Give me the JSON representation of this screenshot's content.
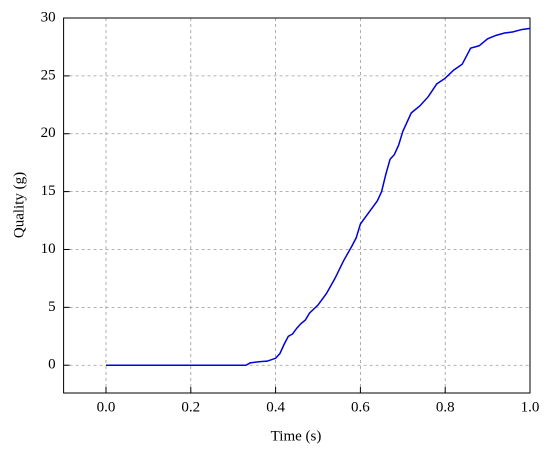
{
  "chart_data": {
    "type": "line",
    "x_label": "Time (s)",
    "y_label": "Quality (g)",
    "x": [
      0.0,
      0.1,
      0.2,
      0.3,
      0.33,
      0.34,
      0.36,
      0.38,
      0.4,
      0.41,
      0.42,
      0.43,
      0.44,
      0.45,
      0.46,
      0.47,
      0.48,
      0.5,
      0.52,
      0.54,
      0.56,
      0.58,
      0.59,
      0.6,
      0.62,
      0.64,
      0.65,
      0.66,
      0.67,
      0.68,
      0.69,
      0.7,
      0.72,
      0.74,
      0.76,
      0.78,
      0.8,
      0.82,
      0.84,
      0.86,
      0.88,
      0.9,
      0.92,
      0.94,
      0.96,
      0.98,
      1.0
    ],
    "series": [
      {
        "color": "#0000e0",
        "values": [
          0,
          0,
          0,
          0,
          0,
          0.2,
          0.3,
          0.35,
          0.6,
          1.0,
          1.8,
          2.5,
          2.7,
          3.2,
          3.6,
          3.9,
          4.5,
          5.2,
          6.2,
          7.5,
          9.0,
          10.3,
          11.0,
          12.2,
          13.2,
          14.2,
          15.0,
          16.5,
          17.8,
          18.2,
          19.0,
          20.2,
          21.8,
          22.4,
          23.2,
          24.3,
          24.8,
          25.5,
          26.0,
          27.4,
          27.6,
          28.2,
          28.5,
          28.7,
          28.8,
          29.0,
          29.1
        ]
      }
    ],
    "xlim": [
      -0.1,
      1.0
    ],
    "xticks": [
      {
        "value": 0,
        "label": "0.0"
      },
      {
        "value": 0.2,
        "label": "0.2"
      },
      {
        "value": 0.4,
        "label": "0.4"
      },
      {
        "value": 0.6,
        "label": "0.6"
      },
      {
        "value": 0.8,
        "label": "0.8"
      },
      {
        "value": 1,
        "label": "1.0"
      }
    ],
    "ylim": [
      -2.4,
      30
    ],
    "yticks": [
      0,
      5,
      10,
      15,
      20,
      25,
      30
    ],
    "grid": true
  }
}
